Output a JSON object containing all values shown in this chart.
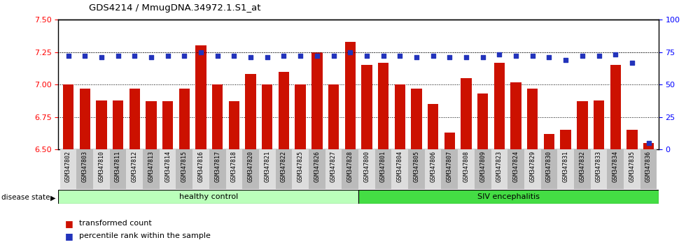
{
  "title": "GDS4214 / MmugDNA.34972.1.S1_at",
  "samples": [
    "GSM347802",
    "GSM347803",
    "GSM347810",
    "GSM347811",
    "GSM347812",
    "GSM347813",
    "GSM347814",
    "GSM347815",
    "GSM347816",
    "GSM347817",
    "GSM347818",
    "GSM347820",
    "GSM347821",
    "GSM347822",
    "GSM347825",
    "GSM347826",
    "GSM347827",
    "GSM347828",
    "GSM347800",
    "GSM347801",
    "GSM347804",
    "GSM347805",
    "GSM347806",
    "GSM347807",
    "GSM347808",
    "GSM347809",
    "GSM347823",
    "GSM347824",
    "GSM347829",
    "GSM347830",
    "GSM347831",
    "GSM347832",
    "GSM347833",
    "GSM347834",
    "GSM347835",
    "GSM347836"
  ],
  "bar_values": [
    7.0,
    6.97,
    6.88,
    6.88,
    6.97,
    6.87,
    6.87,
    6.97,
    7.3,
    7.0,
    6.87,
    7.08,
    7.0,
    7.1,
    7.0,
    7.25,
    7.0,
    7.33,
    7.15,
    7.17,
    7.0,
    6.97,
    6.85,
    6.63,
    7.05,
    6.93,
    7.17,
    7.02,
    6.97,
    6.62,
    6.65,
    6.87,
    6.88,
    7.15,
    6.65,
    6.55
  ],
  "percentile_values": [
    72,
    72,
    71,
    72,
    72,
    71,
    72,
    72,
    75,
    72,
    72,
    71,
    71,
    72,
    72,
    72,
    72,
    75,
    72,
    72,
    72,
    71,
    72,
    71,
    71,
    71,
    73,
    72,
    72,
    71,
    69,
    72,
    72,
    73,
    67,
    5
  ],
  "healthy_count": 18,
  "ylim_left": [
    6.5,
    7.5
  ],
  "ylim_right": [
    0,
    100
  ],
  "yticks_left": [
    6.5,
    6.75,
    7.0,
    7.25,
    7.5
  ],
  "yticks_right": [
    0,
    25,
    50,
    75,
    100
  ],
  "bar_color": "#CC1100",
  "dot_color": "#2233BB",
  "healthy_color": "#BBFFBB",
  "siv_color": "#44DD44",
  "group_label_healthy": "healthy control",
  "group_label_siv": "SIV encephalitis",
  "disease_state_label": "disease state",
  "legend_bar": "transformed count",
  "legend_dot": "percentile rank within the sample"
}
